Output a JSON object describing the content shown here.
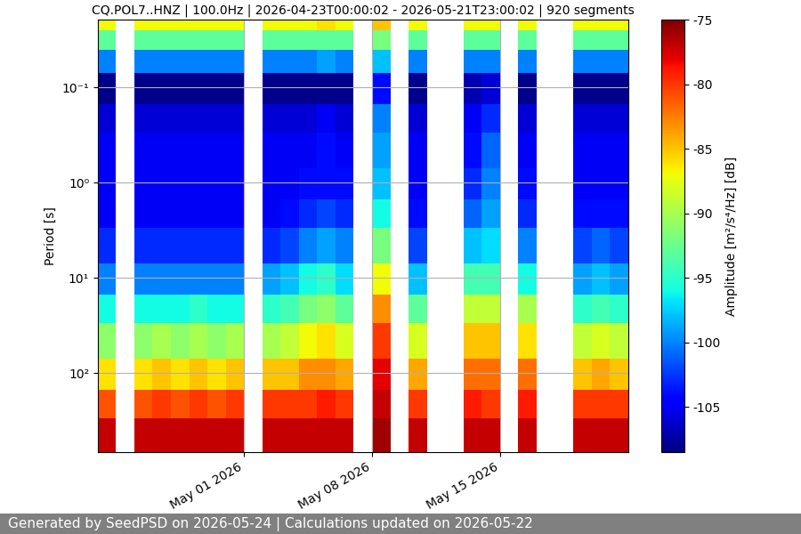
{
  "chart_data": {
    "type": "heatmap",
    "title": "CQ.POL7..HNZ | 100.0Hz | 2026-04-23T00:00:02 - 2026-05-21T23:00:02 | 920 segments",
    "y_label": "Period [s]",
    "footer": "Generated by SeedPSD on 2026-05-24 | Calculations updated on 2026-05-22",
    "color": "jet",
    "log": "y",
    "grid": true,
    "x": [
      "2026-04-23",
      "2026-04-24",
      "2026-04-25",
      "2026-04-26",
      "2026-04-27",
      "2026-04-28",
      "2026-04-29",
      "2026-04-30",
      "2026-05-01",
      "2026-05-02",
      "2026-05-03",
      "2026-05-04",
      "2026-05-05",
      "2026-05-06",
      "2026-05-07",
      "2026-05-08",
      "2026-05-09",
      "2026-05-10",
      "2026-05-11",
      "2026-05-12",
      "2026-05-13",
      "2026-05-14",
      "2026-05-15",
      "2026-05-16",
      "2026-05-17",
      "2026-05-18",
      "2026-05-19",
      "2026-05-20",
      "2026-05-21"
    ],
    "xlim": [
      "2026-04-23",
      "2026-05-22"
    ],
    "xticks": [
      {
        "value": "2026-05-01",
        "label": "May 01 2026"
      },
      {
        "value": "2026-05-08",
        "label": "May 08 2026"
      },
      {
        "value": "2026-05-15",
        "label": "May 15 2026"
      }
    ],
    "y_edges": [
      0.0195,
      0.025,
      0.04,
      0.07,
      0.15,
      0.3,
      0.7,
      1.5,
      3,
      7,
      15,
      30,
      70,
      150,
      300,
      676
    ],
    "ylim": [
      676,
      0.0195
    ],
    "yticks": [
      {
        "value": 0.1,
        "label": "10⁻¹"
      },
      {
        "value": 1,
        "label": "10⁰"
      },
      {
        "value": 10,
        "label": "10¹"
      },
      {
        "value": 100,
        "label": "10²"
      }
    ],
    "cells": [
      [
        -87,
        -93,
        -100,
        -108,
        -106,
        -105,
        -105,
        -105,
        -103,
        -100,
        -96,
        -91,
        -86,
        -81,
        -77
      ],
      null,
      [
        -87,
        -93,
        -100,
        -108,
        -106,
        -105,
        -105,
        -105,
        -103,
        -100,
        -96,
        -91,
        -86,
        -81,
        -77
      ],
      [
        -87,
        -93,
        -100,
        -108,
        -106,
        -105,
        -105,
        -105,
        -103,
        -100,
        -96,
        -90,
        -85,
        -80,
        -77
      ],
      [
        -87,
        -93,
        -100,
        -108,
        -106,
        -105,
        -105,
        -105,
        -103,
        -100,
        -96,
        -91,
        -86,
        -81,
        -77
      ],
      [
        -87,
        -93,
        -100,
        -108,
        -106,
        -105,
        -105,
        -105,
        -103,
        -100,
        -95,
        -90,
        -85,
        -80,
        -77
      ],
      [
        -87,
        -93,
        -100,
        -108,
        -106,
        -105,
        -105,
        -105,
        -103,
        -100,
        -96,
        -91,
        -86,
        -81,
        -77
      ],
      [
        -87,
        -93,
        -100,
        -108,
        -106,
        -105,
        -105,
        -105,
        -103,
        -100,
        -96,
        -90,
        -85,
        -80,
        -77
      ],
      null,
      [
        -87,
        -93,
        -100,
        -108,
        -106,
        -105,
        -105,
        -105,
        -103,
        -99,
        -95,
        -90,
        -85,
        -80,
        -77
      ],
      [
        -87,
        -93,
        -100,
        -108,
        -106,
        -105,
        -105,
        -104,
        -102,
        -98,
        -94,
        -89,
        -85,
        -80,
        -77
      ],
      [
        -87,
        -93,
        -100,
        -108,
        -106,
        -105,
        -104,
        -103,
        -100,
        -96,
        -92,
        -87,
        -83,
        -80,
        -77
      ],
      [
        -86,
        -93,
        -99,
        -108,
        -105,
        -104,
        -104,
        -102,
        -99,
        -95,
        -91,
        -86,
        -83,
        -79,
        -77
      ],
      [
        -87,
        -93,
        -100,
        -108,
        -106,
        -105,
        -104,
        -103,
        -100,
        -97,
        -93,
        -88,
        -84,
        -80,
        -77
      ],
      null,
      [
        -85,
        -92,
        -98,
        -104,
        -100,
        -99,
        -98,
        -96,
        -92,
        -87,
        -83,
        -80,
        -78,
        -77,
        -76
      ],
      null,
      [
        -87,
        -93,
        -100,
        -108,
        -106,
        -105,
        -105,
        -104,
        -102,
        -98,
        -93,
        -88,
        -84,
        -80,
        -77
      ],
      null,
      null,
      [
        -87,
        -93,
        -100,
        -107,
        -105,
        -104,
        -103,
        -101,
        -98,
        -94,
        -89,
        -85,
        -82,
        -79,
        -77
      ],
      [
        -87,
        -93,
        -100,
        -106,
        -103,
        -101,
        -100,
        -99,
        -97,
        -94,
        -89,
        -85,
        -82,
        -80,
        -77
      ],
      null,
      [
        -87,
        -93,
        -100,
        -108,
        -106,
        -105,
        -104,
        -103,
        -100,
        -96,
        -90,
        -86,
        -82,
        -79,
        -77
      ],
      null,
      null,
      [
        -87,
        -93,
        -100,
        -108,
        -106,
        -105,
        -105,
        -104,
        -102,
        -99,
        -95,
        -89,
        -85,
        -80,
        -77
      ],
      [
        -87,
        -93,
        -100,
        -108,
        -106,
        -105,
        -105,
        -104,
        -101,
        -98,
        -94,
        -88,
        -84,
        -80,
        -77
      ],
      [
        -87,
        -93,
        -100,
        -108,
        -106,
        -105,
        -105,
        -104,
        -102,
        -99,
        -95,
        -89,
        -85,
        -80,
        -77
      ]
    ],
    "colorbar_label": "Amplitude [m²/s⁴/Hz] [dB]",
    "clim": [
      -108.5,
      -75
    ],
    "cticks": [
      -105,
      -100,
      -95,
      -90,
      -85,
      -80,
      -75
    ]
  }
}
